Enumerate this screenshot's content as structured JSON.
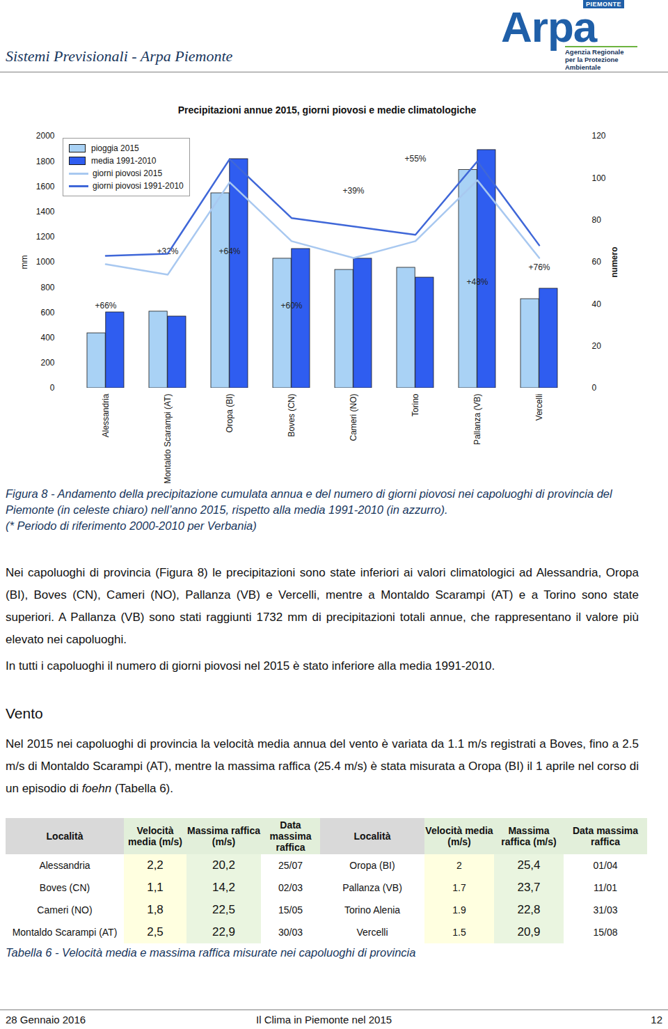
{
  "header": {
    "title": "Sistemi Previsionali - Arpa Piemonte",
    "logo": {
      "region": "PIEMONTE",
      "name": "Arpa",
      "subtitle": [
        "Agenzia Regionale",
        "per la Protezione Ambientale"
      ]
    }
  },
  "chart_data": {
    "type": "bar",
    "title": "Precipitazioni annue 2015, giorni piovosi e medie climatologiche",
    "categories": [
      "Alessandria",
      "Montaldo Scarampi (AT)",
      "Oropa (BI)",
      "Boves (CN)",
      "Cameri (NO)",
      "Torino",
      "Pallanza (VB)",
      "Vercelli"
    ],
    "series": [
      {
        "name": "pioggia 2015",
        "type": "bar",
        "color": "#a9d2f5",
        "values": [
          436,
          608,
          1547,
          1028,
          939,
          956,
          1732,
          707
        ]
      },
      {
        "name": "media 1991-2010",
        "type": "bar",
        "color": "#2f5df0",
        "values": [
          602,
          569,
          1818,
          1105,
          1028,
          878,
          1890,
          790
        ]
      },
      {
        "name": "giorni piovosi 2015",
        "type": "line",
        "axis": "y2",
        "color": "#a8c8f0",
        "values": [
          59,
          54,
          98,
          70,
          62,
          70,
          99,
          62
        ]
      },
      {
        "name": "giorni piovosi 1991-2010",
        "type": "line",
        "axis": "y2",
        "color": "#3f67d8",
        "values": [
          63,
          64,
          109,
          81,
          77,
          73,
          108,
          68
        ]
      }
    ],
    "y_label": "mm",
    "ylim": [
      0,
      2000
    ],
    "yticks": [
      0,
      200,
      400,
      600,
      800,
      1000,
      1200,
      1400,
      1600,
      1800,
      2000
    ],
    "y2_label": "numero",
    "y2lim": [
      0,
      120
    ],
    "y2ticks": [
      0,
      20,
      40,
      60,
      80,
      100,
      120
    ],
    "annotations": [
      {
        "category": "Alessandria",
        "text": "+66%"
      },
      {
        "category": "Montaldo Scarampi (AT)",
        "text": "+32%"
      },
      {
        "category": "Oropa (BI)",
        "text": "+64%"
      },
      {
        "category": "Boves (CN)",
        "text": "+60%"
      },
      {
        "category": "Cameri (NO)",
        "text": "+39%"
      },
      {
        "category": "Torino",
        "text": "+55%"
      },
      {
        "category": "Pallanza (VB)",
        "text": "+48%"
      },
      {
        "category": "Vercelli",
        "text": "+76%"
      }
    ],
    "grid": false,
    "legend": "top-left"
  },
  "figure_caption": [
    "Figura 8 - Andamento della precipitazione cumulata annua e del numero di giorni piovosi nei capoluoghi di provincia del Piemonte (in celeste chiaro) nell’anno 2015, rispetto alla media 1991-2010 (in azzurro).",
    "(* Periodo di riferimento 2000-2010 per Verbania)"
  ],
  "paragraphs": [
    "Nei capoluoghi di provincia (Figura 8) le precipitazioni sono state inferiori ai valori climatologici ad Alessandria, Oropa (BI), Boves (CN), Cameri (NO), Pallanza (VB) e Vercelli, mentre a Montaldo Scarampi (AT) e a Torino sono state superiori. A Pallanza (VB) sono stati raggiunti 1732 mm di precipitazioni totali annue, che rappresentano il valore più elevato nei capoluoghi.",
    "In tutti i capoluoghi il numero di giorni piovosi nel 2015 è stato inferiore alla media 1991-2010."
  ],
  "section": {
    "heading": "Vento",
    "paragraph": [
      {
        "text": "Nel 2015 nei capoluoghi di provincia la velocità media annua del vento è variata da 1.1 m/s registrati a Boves, fino a 2.5 m/s di Montaldo Scarampi (AT), mentre la massima raffica (25.4 m/s) è stata misurata a Oropa (BI) il 1 aprile nel corso di un episodio di "
      },
      {
        "text": "foehn",
        "italic": true
      },
      {
        "text": " (Tabella 6)."
      }
    ]
  },
  "table": {
    "header": [
      "Località",
      "Velocità media (m/s)",
      "Massima raffica (m/s)",
      "Data massima raffica",
      "Località",
      "Velocità media (m/s)",
      "Massima raffica (m/s)",
      "Data massima raffica"
    ],
    "rows": [
      [
        "Alessandria",
        "2,2",
        "20,2",
        "25/07",
        "Oropa (BI)",
        "2",
        "25,4",
        "01/04"
      ],
      [
        "Boves (CN)",
        "1,1",
        "14,2",
        "02/03",
        "Pallanza (VB)",
        "1.7",
        "23,7",
        "11/01"
      ],
      [
        "Cameri (NO)",
        "1,8",
        "22,5",
        "15/05",
        "Torino Alenia",
        "1.9",
        "22,8",
        "31/03"
      ],
      [
        "Montaldo Scarampi (AT)",
        "2,5",
        "22,9",
        "30/03",
        "Vercelli",
        "1.5",
        "20,9",
        "15/08"
      ]
    ]
  },
  "table_caption": "Tabella 6 - Velocità media e massima raffica misurate nei capoluoghi di provincia",
  "footer": {
    "date": "28 Gennaio 2016",
    "title": "Il Clima in Piemonte nel 2015",
    "page": "12"
  }
}
